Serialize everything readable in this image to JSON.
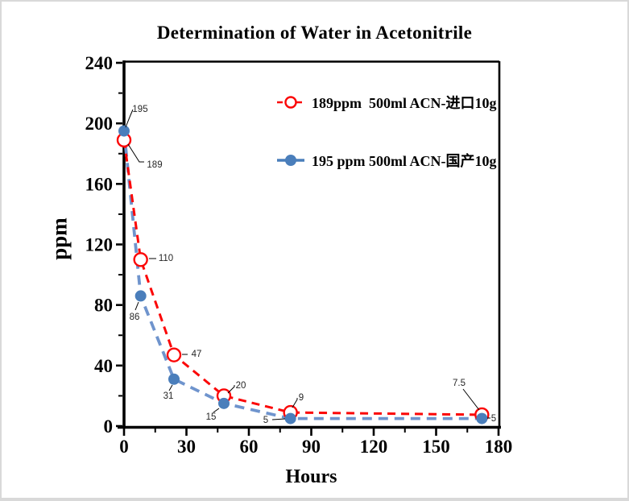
{
  "window": {
    "background_color": "#ffffff",
    "border_color": "#d9d9d9"
  },
  "chart_data": {
    "type": "line",
    "title": "Determination of Water in Acetonitrile",
    "xlabel": "Hours",
    "ylabel": "ppm",
    "xlim": [
      0,
      180
    ],
    "ylim": [
      0,
      240
    ],
    "x_major_ticks": [
      0,
      30,
      60,
      90,
      120,
      150,
      180
    ],
    "x_minor_step": 15,
    "y_major_ticks": [
      0,
      40,
      80,
      120,
      160,
      200,
      240
    ],
    "y_minor_step": 20,
    "grid": false,
    "legend_position": "inside-upper-right",
    "frame": true,
    "series": [
      {
        "name": "189ppm  500ml ACN-进口10g",
        "color": "#fb0606",
        "marker": "open-circle",
        "line_style": "dashed",
        "x": [
          0,
          8,
          24,
          48,
          80,
          172
        ],
        "values": [
          189,
          110,
          47,
          20,
          9,
          7.5
        ],
        "point_labels": [
          "189",
          "110",
          "47",
          "20",
          "9",
          "7.5"
        ]
      },
      {
        "name": "195 pm 500ml ACN-国产10g",
        "name_display": "195 ppm 500ml ACN-国产10g",
        "color": "#6f94cd",
        "marker_color": "#4a7ebb",
        "marker": "filled-circle",
        "line_style": "dashed",
        "x": [
          0,
          8,
          24,
          48,
          80,
          172
        ],
        "values": [
          195,
          86,
          31,
          15,
          5,
          5
        ],
        "point_labels": [
          "195",
          "86",
          "31",
          "15",
          "5",
          "5"
        ]
      }
    ],
    "point_label_color": "#262626",
    "axis_color": "#000000"
  }
}
